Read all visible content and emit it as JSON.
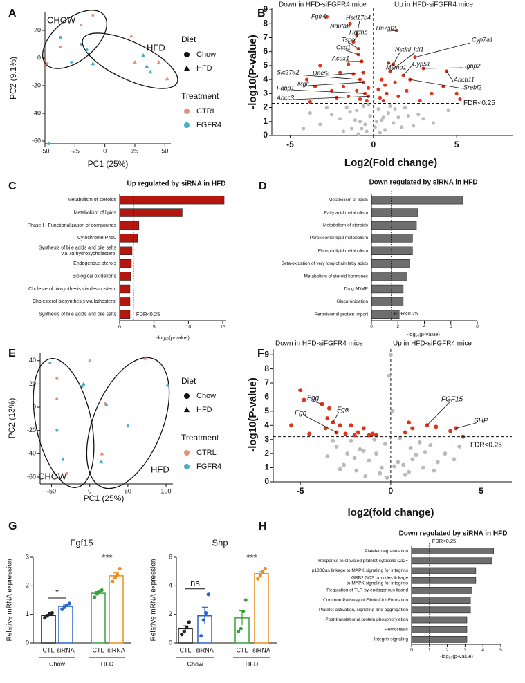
{
  "chart_data": [
    {
      "type": "scatter",
      "panel": "A",
      "xlabel": "PC1 (25%)",
      "ylabel": "PC2 (9.1%)",
      "xlim": [
        -50,
        55
      ],
      "xticks": [
        -50,
        -25,
        0,
        25,
        50
      ],
      "ylim": [
        -62,
        33
      ],
      "yticks": [
        -60,
        -40,
        -20,
        0,
        20
      ],
      "group_labels": [
        "CHOW",
        "HFD"
      ],
      "series": [
        {
          "marker": "circle",
          "color": "#e8907a",
          "x": [
            -48,
            -37,
            -20,
            -10
          ],
          "y": [
            -4,
            8,
            24,
            31
          ]
        },
        {
          "marker": "circle",
          "color": "#4aaec8",
          "x": [
            -37,
            -28,
            -20,
            -15,
            -47
          ],
          "y": [
            15,
            -3,
            10,
            6,
            -62
          ]
        },
        {
          "marker": "triangle",
          "color": "#e8907a",
          "x": [
            22,
            25,
            45,
            52
          ],
          "y": [
            16,
            -3,
            -3,
            -15
          ]
        },
        {
          "marker": "triangle",
          "color": "#4aaec8",
          "x": [
            -10,
            32,
            35,
            38
          ],
          "y": [
            -4,
            2,
            -6,
            -10
          ]
        }
      ],
      "legend": [
        {
          "title": "Diet",
          "items": [
            {
              "label": "Chow",
              "marker": "circle"
            },
            {
              "label": "HFD",
              "marker": "triangle"
            }
          ]
        },
        {
          "title": "Treatment",
          "items": [
            {
              "label": "CTRL",
              "color": "#e8907a"
            },
            {
              "label": "FGFR4",
              "color": "#4aaec8"
            }
          ]
        }
      ]
    },
    {
      "type": "scatter",
      "panel": "B",
      "xlabel": "Log2(Fold change)",
      "ylabel": "-log10(P-value)",
      "header_left": "Down in HFD-siFGFR4  mice",
      "header_right": "Up in HFD-siFGFR4 mice",
      "xlim": [
        -6.1,
        8.4
      ],
      "xticks": [
        -5,
        0,
        5
      ],
      "ylim": [
        0,
        9.1
      ],
      "yticks": [
        0,
        1,
        2,
        3,
        4,
        5,
        6,
        7,
        8,
        9
      ],
      "threshold": {
        "value": 2.3,
        "label": "FDR<0.25"
      },
      "series": [
        {
          "marker": "circle",
          "color": "#bbbbbb",
          "x": [
            -3.2,
            -2.5,
            -2,
            -1.6,
            -1.3,
            -1,
            -0.8,
            -0.6,
            -0.4,
            -0.2,
            0.1,
            0.3,
            0.5,
            0.7,
            0.9,
            1.2,
            1.5,
            1.9,
            2.4,
            3,
            -4.2,
            -3.8,
            -1.8,
            -1.1,
            -0.5,
            0.4,
            1.0,
            1.7,
            2.7,
            3.6,
            -2.8,
            -1.4,
            -0.7,
            -0.3,
            0.2,
            0.6,
            1.3,
            2.1,
            4.5,
            -0.9
          ],
          "y": [
            0.8,
            1.5,
            1.2,
            2.0,
            0.5,
            1.8,
            1.0,
            2.1,
            0.3,
            1.4,
            0.6,
            1.9,
            1.1,
            0.4,
            1.6,
            0.9,
            1.3,
            2.0,
            0.7,
            1.2,
            0.5,
            1.6,
            0.3,
            1.1,
            0.8,
            0.2,
            2.1,
            0.6,
            1.5,
            0.9,
            2.0,
            1.7,
            0.5,
            2.2,
            1.0,
            1.3,
            1.9,
            1.4,
            1.8,
            0.1
          ]
        },
        {
          "marker": "circle",
          "color": "#e0341a",
          "x": [
            -2.8,
            -1.4,
            -1.0,
            -1.2,
            -0.9,
            -0.9,
            -0.7,
            -1.5,
            -3.2,
            -2.0,
            -4.0,
            -1.2,
            -0.8,
            -0.6,
            -3.5,
            -2.5,
            -1.8,
            -1.0,
            -0.5,
            -1.5,
            -0.8,
            -0.4,
            -2.2,
            -3.8,
            -0.3,
            -0.6,
            -0.3,
            1.4,
            0.9,
            1.2,
            1.8,
            1.0,
            2.5,
            3.0,
            4.4,
            4.2,
            5.0,
            0.5,
            0.7,
            2.0,
            3.5,
            0.4,
            1.5,
            2.8,
            0.8,
            1.3,
            0.3,
            2.2,
            0.6,
            5.2
          ],
          "y": [
            8.5,
            8.0,
            7.2,
            6.7,
            6.2,
            5.8,
            5.3,
            5.1,
            5.0,
            4.5,
            4.0,
            4.4,
            4.0,
            3.8,
            3.5,
            3.2,
            3.5,
            3.2,
            3.0,
            2.8,
            2.6,
            2.5,
            2.7,
            2.4,
            3.4,
            4.5,
            2.8,
            7.5,
            5.2,
            5.1,
            4.3,
            4.6,
            5.6,
            4.8,
            4.6,
            3.5,
            3.0,
            4.0,
            3.6,
            3.2,
            3.0,
            2.7,
            2.8,
            2.5,
            3.0,
            3.8,
            3.3,
            4.0,
            2.5,
            2.6
          ]
        }
      ],
      "annotations": [
        {
          "text": "Fgfr4",
          "x": -2.8,
          "y": 8.5
        },
        {
          "text": "Hsd17b4",
          "x": -1.0,
          "y": 7.2
        },
        {
          "text": "Ndufa5",
          "x": -1.4,
          "y": 8.0
        },
        {
          "text": "Hadhb",
          "x": -1.2,
          "y": 6.7
        },
        {
          "text": "Tspo",
          "x": -0.9,
          "y": 6.2
        },
        {
          "text": "Csd1",
          "x": -0.9,
          "y": 5.8
        },
        {
          "text": "Acox1",
          "x": -0.7,
          "y": 5.3
        },
        {
          "text": "Decr2",
          "x": -0.6,
          "y": 4.5
        },
        {
          "text": "Slc27a2",
          "x": -0.8,
          "y": 4.0
        },
        {
          "text": "Mgll",
          "x": -0.6,
          "y": 3.8
        },
        {
          "text": "Fabp1",
          "x": -0.5,
          "y": 3.0
        },
        {
          "text": "Abcc3",
          "x": -0.3,
          "y": 2.8
        },
        {
          "text": "Tm7sf2",
          "x": 1.4,
          "y": 7.5
        },
        {
          "text": "Nsdhl",
          "x": 1.2,
          "y": 5.1
        },
        {
          "text": "Idi1",
          "x": 1.0,
          "y": 4.6
        },
        {
          "text": "Msmo1",
          "x": 0.9,
          "y": 5.2
        },
        {
          "text": "Cyp51",
          "x": 1.8,
          "y": 4.3
        },
        {
          "text": "Cyp7a1",
          "x": 2.5,
          "y": 5.6
        },
        {
          "text": "Igbp2",
          "x": 3.0,
          "y": 4.8
        },
        {
          "text": "Abcb11",
          "x": 4.4,
          "y": 4.6
        },
        {
          "text": "Srebf2",
          "x": 2.2,
          "y": 4.0
        }
      ]
    },
    {
      "type": "barh",
      "panel": "C",
      "title": "Up regulated by siRNA in HFD",
      "xlabel": "-log₁₀(p-value)",
      "color": "#b5170e",
      "categories": [
        "Metabolism of steroids",
        "Metabolism of lipids",
        "Phase I - Functionalization of compounds",
        "Cytochrome P450",
        [
          "Synthesis of bile acids and bile salts",
          "via 7α-hydroxycholesterol"
        ],
        "Endogenous sterols",
        "Biological oxidations",
        "Cholesterol biosynthesis via desmosterol",
        "Cholesterol biosynthesis via lathosterol",
        "Synthesis of bile acids and bile salts"
      ],
      "values": [
        15.2,
        9.1,
        2.8,
        2.6,
        1.8,
        1.7,
        1.6,
        1.5,
        1.5,
        1.5
      ],
      "xlim": [
        0,
        15.5
      ],
      "xticks": [
        0,
        5,
        10,
        15
      ],
      "threshold": {
        "value": 2.0,
        "label": "FDR<0.25"
      }
    },
    {
      "type": "barh",
      "panel": "D",
      "title": "Down  regulated by siRNA in HFD",
      "xlabel": "-log₁₀(p-value)",
      "color": "#6e6e6e",
      "categories": [
        "Metabolism of lipids",
        "Fatty acid metabolism",
        "Metabolism of steroids",
        "Peroxisomal lipid metabolism",
        "Phospholipid metabolism",
        "Beta-oxidation of very long chain fatty acids",
        "Metabolism of steroid hormones",
        "Drug ADME",
        "Glucuronidation",
        "Peroxisomal protein import"
      ],
      "values": [
        6.9,
        3.5,
        3.4,
        3.1,
        3.1,
        2.9,
        2.7,
        2.4,
        2.4,
        2.1
      ],
      "xlim": [
        0,
        8
      ],
      "xticks": [
        0,
        2,
        4,
        6,
        8
      ],
      "threshold": {
        "value": 1.5,
        "label": "FDR<0.25"
      }
    },
    {
      "type": "scatter",
      "panel": "E",
      "xlabel": "PC1 (25%)",
      "ylabel": "PC2 (13%)",
      "xlim": [
        -65,
        109
      ],
      "xticks": [
        -50,
        0,
        50,
        100
      ],
      "ylim": [
        -66,
        47
      ],
      "yticks": [
        -60,
        -40,
        -20,
        0,
        20,
        40
      ],
      "group_labels": [
        "CHOW",
        "HFD"
      ],
      "series": [
        {
          "marker": "circle",
          "color": "#e8907a",
          "x": [
            -43,
            -43,
            -30,
            20
          ],
          "y": [
            25,
            7,
            -57,
            3
          ]
        },
        {
          "marker": "circle",
          "color": "#4aaec8",
          "x": [
            -52,
            -43,
            -35,
            -10
          ],
          "y": [
            38,
            -20,
            -45,
            18
          ]
        },
        {
          "marker": "triangle",
          "color": "#e8907a",
          "x": [
            0,
            16,
            73
          ],
          "y": [
            40,
            -40,
            42
          ]
        },
        {
          "marker": "triangle",
          "color": "#4aaec8",
          "x": [
            -8,
            22,
            50,
            102,
            15
          ],
          "y": [
            20,
            2,
            -16,
            19,
            -47
          ]
        }
      ],
      "legend": [
        {
          "title": "Diet",
          "items": [
            {
              "label": "Chow",
              "marker": "circle"
            },
            {
              "label": "HFD",
              "marker": "triangle"
            }
          ]
        },
        {
          "title": "Treatment",
          "items": [
            {
              "label": "CTRL",
              "color": "#e8907a"
            },
            {
              "label": "FGFR4",
              "color": "#4aaec8"
            }
          ]
        }
      ]
    },
    {
      "type": "scatter",
      "panel": "F",
      "xlabel": "log2(fold change)",
      "ylabel": "-log10(P-value)",
      "header_left": "Down in HFD-siFGFR4  mice",
      "header_right": "Up in HFD-siFGFR4 mice",
      "xlim": [
        -6.5,
        6.7
      ],
      "xticks": [
        -5,
        0,
        5
      ],
      "ylim": [
        0,
        9.4
      ],
      "yticks": [
        0,
        1,
        2,
        3,
        4,
        5,
        6,
        7,
        8,
        9
      ],
      "threshold": {
        "value": 3.2,
        "label": "FDR<0.25"
      },
      "series": [
        {
          "marker": "circle",
          "color": "#bbbbbb",
          "x": [
            -3.5,
            -3,
            -2.6,
            -2.2,
            -1.9,
            -1.5,
            -1.2,
            -0.9,
            -0.6,
            -0.3,
            0.2,
            0.5,
            0.8,
            1.1,
            1.4,
            1.8,
            2.2,
            2.6,
            3.0,
            3.5,
            -2.8,
            -2.0,
            -1.4,
            -0.8,
            -0.2,
            0.4,
            1.0,
            1.6,
            2.4,
            0.1,
            -0.1,
            0,
            -1.7,
            1.9,
            -2.4,
            0.7,
            3.8,
            -3.2,
            1.2,
            -0.5
          ],
          "y": [
            1.8,
            2.5,
            1.2,
            2.9,
            0.8,
            2.2,
            1.5,
            3.0,
            0.6,
            2.7,
            1.1,
            3.1,
            0.5,
            2.4,
            1.9,
            1.0,
            2.6,
            1.4,
            2.0,
            1.6,
            0.9,
            1.7,
            0.4,
            2.0,
            0.3,
            1.4,
            0.7,
            2.8,
            0.8,
            5.0,
            7.5,
            9.0,
            2.3,
            2.1,
            2.0,
            1.2,
            2.5,
            2.9,
            1.6,
            1.0
          ]
        },
        {
          "marker": "circle",
          "color": "#e0341a",
          "x": [
            -5.0,
            -4.8,
            -3.8,
            -3.4,
            -3.5,
            -3.2,
            -2.8,
            -3.0,
            -3.6,
            -2.5,
            -2.2,
            -1.8,
            -1.5,
            -1.2,
            -1.0,
            -4.5,
            -5.5,
            -2.0,
            1.0,
            1.2,
            2.0,
            2.5,
            3.3,
            3.6,
            4.0,
            0.8,
            -0.8
          ],
          "y": [
            6.5,
            5.8,
            5.5,
            5.2,
            4.5,
            4.2,
            4.0,
            3.5,
            3.8,
            3.4,
            4.0,
            3.5,
            3.8,
            3.3,
            3.4,
            3.4,
            4.0,
            3.3,
            4.2,
            3.8,
            4.0,
            3.9,
            3.6,
            3.8,
            3.2,
            3.5,
            3.3
          ]
        }
      ],
      "annotations": [
        {
          "text": "Fgg",
          "x": -3.8,
          "y": 5.5
        },
        {
          "text": "Fga",
          "x": -3.2,
          "y": 4.2
        },
        {
          "text": "Fgb",
          "x": -3.0,
          "y": 3.5
        },
        {
          "text": "FGF15",
          "x": 2.0,
          "y": 4.0
        },
        {
          "text": "SHP",
          "x": 3.6,
          "y": 3.8
        }
      ]
    },
    {
      "type": "bar",
      "panel": "G",
      "title": "Fgf15",
      "ylabel": "Relative  mRNA expression",
      "categories": [
        "CTL",
        "siRNA",
        "CTL",
        "siRNA"
      ],
      "groups": [
        "Chow",
        "HFD"
      ],
      "values": [
        0.96,
        1.28,
        1.74,
        2.35
      ],
      "errors": [
        0.04,
        0.05,
        0.06,
        0.1
      ],
      "points": [
        [
          0.88,
          0.95,
          1.02,
          1.05
        ],
        [
          1.18,
          1.25,
          1.32,
          1.38
        ],
        [
          1.6,
          1.72,
          1.8,
          1.85
        ],
        [
          2.15,
          2.28,
          2.38,
          2.6
        ]
      ],
      "colors": [
        "#222222",
        "#2a62c9",
        "#3aa13a",
        "#f08c1e"
      ],
      "significance": [
        "*",
        "***"
      ],
      "ylim": [
        0,
        3
      ],
      "yticks": [
        0,
        1,
        2,
        3
      ]
    },
    {
      "type": "bar",
      "title": "Shp",
      "ylabel": "Relative  mRNA expression",
      "categories": [
        "CTL",
        "siRNA",
        "CTL",
        "siRNA"
      ],
      "groups": [
        "Chow",
        "HFD"
      ],
      "values": [
        1.0,
        1.9,
        1.75,
        4.85
      ],
      "errors": [
        0.2,
        0.6,
        0.5,
        0.15
      ],
      "points": [
        [
          0.6,
          0.8,
          1.1,
          1.45
        ],
        [
          0.5,
          1.6,
          2.1,
          3.4
        ],
        [
          0.8,
          1.0,
          2.2,
          3.0
        ],
        [
          4.5,
          4.7,
          5.0,
          5.2
        ]
      ],
      "colors": [
        "#222222",
        "#2a62c9",
        "#3aa13a",
        "#f08c1e"
      ],
      "significance": [
        "ns",
        "***"
      ],
      "ylim": [
        0,
        6
      ],
      "yticks": [
        0,
        2,
        4,
        6
      ]
    },
    {
      "type": "barh",
      "panel": "H",
      "title": "Down  regulated by siRNA in HFD",
      "xlabel": "-log₁₀(p-value)",
      "color": "#6e6e6e",
      "categories": [
        "Platelet degranulation",
        "Response to elevated platelet cytosolic Ca2+",
        "p130Cas linkage to MAPK signaling for integrins",
        [
          "GRB2:SOS provides linkage",
          "to MAPK signaling for integrins"
        ],
        "Regulation of TLR by endogenous ligand",
        "Common Pathway of Fibrin Clot Formation",
        "Platelet activation, signaling and aggregation",
        "Post-translational protein phosphorylation",
        "Hemostasis",
        "Integrin signaling"
      ],
      "values": [
        4.6,
        4.5,
        3.6,
        3.6,
        3.4,
        3.3,
        3.3,
        3.1,
        3.1,
        3.1
      ],
      "xlim": [
        0,
        5
      ],
      "xticks": [
        0,
        1,
        2,
        3,
        4,
        5
      ],
      "threshold": {
        "value": 1.0,
        "label": "FDR<0.25"
      }
    }
  ]
}
